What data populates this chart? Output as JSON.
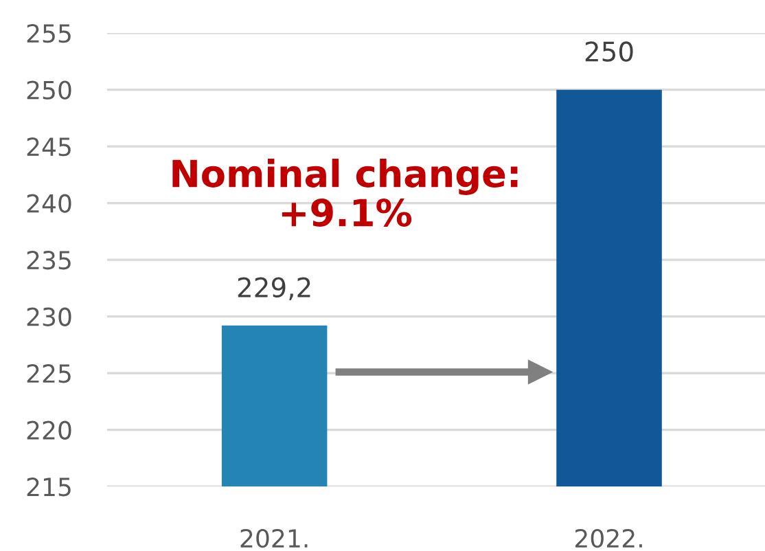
{
  "chart_data": {
    "type": "bar",
    "categories": [
      "2021.",
      "2022."
    ],
    "values": [
      229.2,
      250
    ],
    "colors": [
      "#2484b4",
      "#115899"
    ],
    "value_labels": [
      "229,2",
      "250"
    ],
    "ylim": [
      215,
      255
    ],
    "yticks": [
      215,
      220,
      225,
      230,
      235,
      240,
      245,
      250,
      255
    ],
    "grid": "y",
    "annotations": [
      "Nominal change:\n+9.1%"
    ]
  }
}
